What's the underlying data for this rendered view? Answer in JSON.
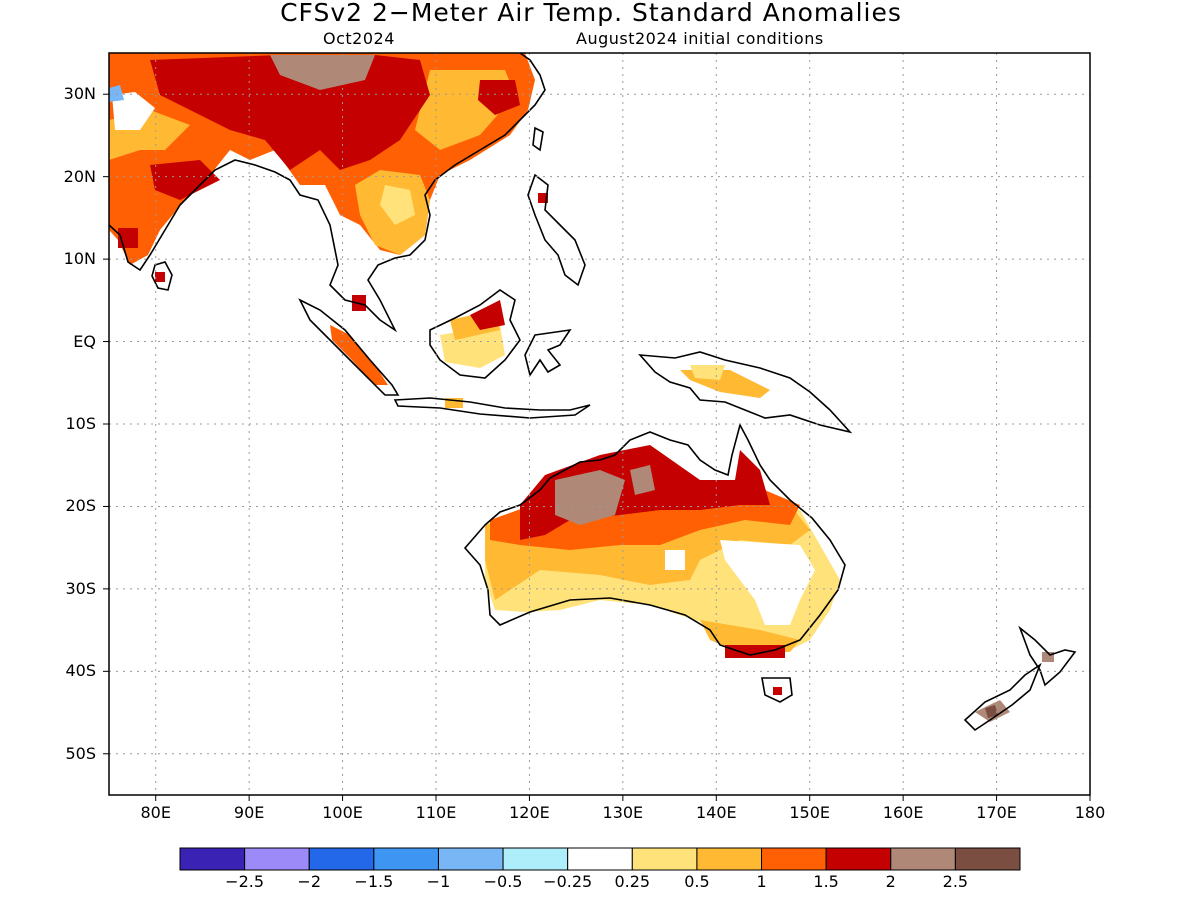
{
  "header": {
    "title": "CFSv2 2−Meter Air Temp. Standard Anomalies",
    "forecast_month": "Oct2024",
    "initial_conditions": "August2024 initial conditions"
  },
  "map": {
    "lat_labels": [
      "30N",
      "20N",
      "10N",
      "EQ",
      "10S",
      "20S",
      "30S",
      "40S",
      "50S"
    ],
    "lon_labels": [
      "80E",
      "90E",
      "100E",
      "110E",
      "120E",
      "130E",
      "140E",
      "150E",
      "160E",
      "170E",
      "180"
    ],
    "extent": {
      "lon": [
        75,
        180
      ],
      "lat": [
        -55,
        35
      ]
    },
    "grid": "dotted"
  },
  "colorbar": {
    "colors": [
      "#3a22b4",
      "#9b8af8",
      "#2268e8",
      "#3f95f2",
      "#78b6f6",
      "#aeeefa",
      "#ffffff",
      "#ffe27a",
      "#ffb932",
      "#ff6004",
      "#c40000",
      "#b08877",
      "#7a4e41"
    ],
    "labels": [
      "−2.5",
      "−2",
      "−1.5",
      "−1",
      "−0.5",
      "−0.25",
      "0.25",
      "0.5",
      "1",
      "1.5",
      "2",
      "2.5"
    ]
  }
}
